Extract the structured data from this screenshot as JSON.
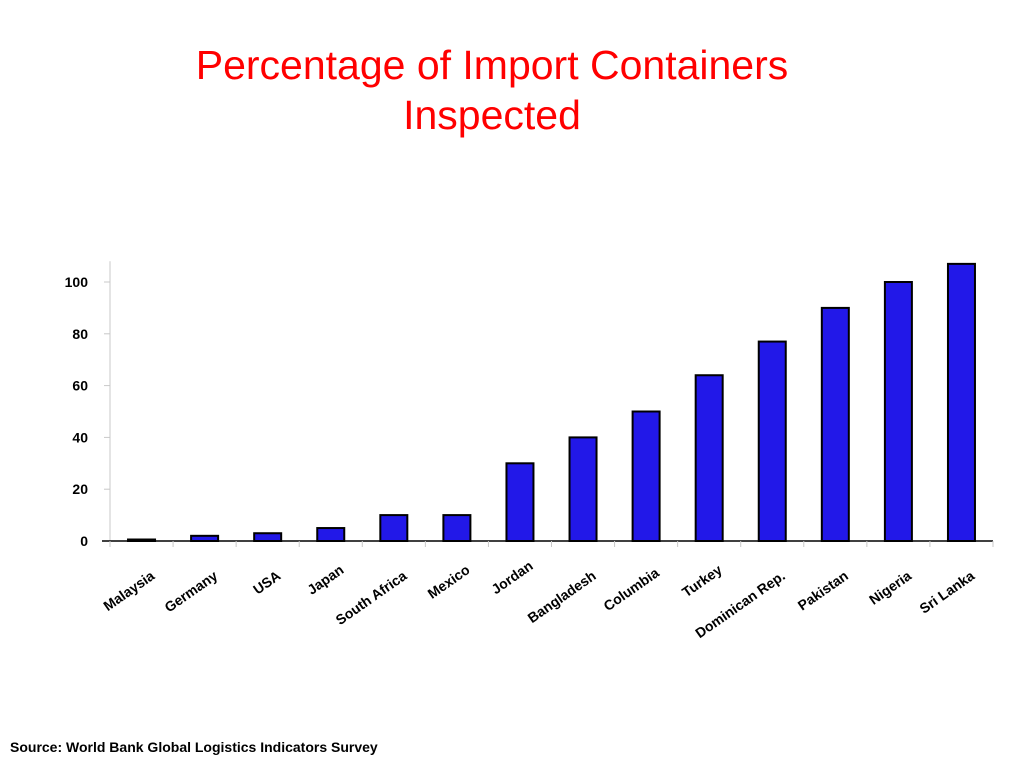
{
  "slide": {
    "title_line1": "Percentage of Import Containers",
    "title_line2": "Inspected",
    "source": "Source: World Bank Global Logistics Indicators Survey"
  },
  "colors": {
    "title": "#ff0000",
    "bar": "#2218e8",
    "axis": "#000000",
    "text": "#000000"
  },
  "chart_data": {
    "type": "bar",
    "title": "Percentage of Import Containers Inspected",
    "xlabel": "",
    "ylabel": "",
    "categories": [
      "Malaysia",
      "Germany",
      "USA",
      "Japan",
      "South Africa",
      "Mexico",
      "Jordan",
      "Bangladesh",
      "Columbia",
      "Turkey",
      "Dominican Rep.",
      "Pakistan",
      "Nigeria",
      "Sri Lanka"
    ],
    "values": [
      0.5,
      2,
      3,
      5,
      10,
      10,
      30,
      40,
      50,
      64,
      77,
      90,
      100,
      107
    ],
    "yticks": [
      "0",
      "20",
      "40",
      "60",
      "80",
      "100"
    ],
    "ylim": [
      0,
      108
    ],
    "grid": false,
    "legend": "none"
  }
}
